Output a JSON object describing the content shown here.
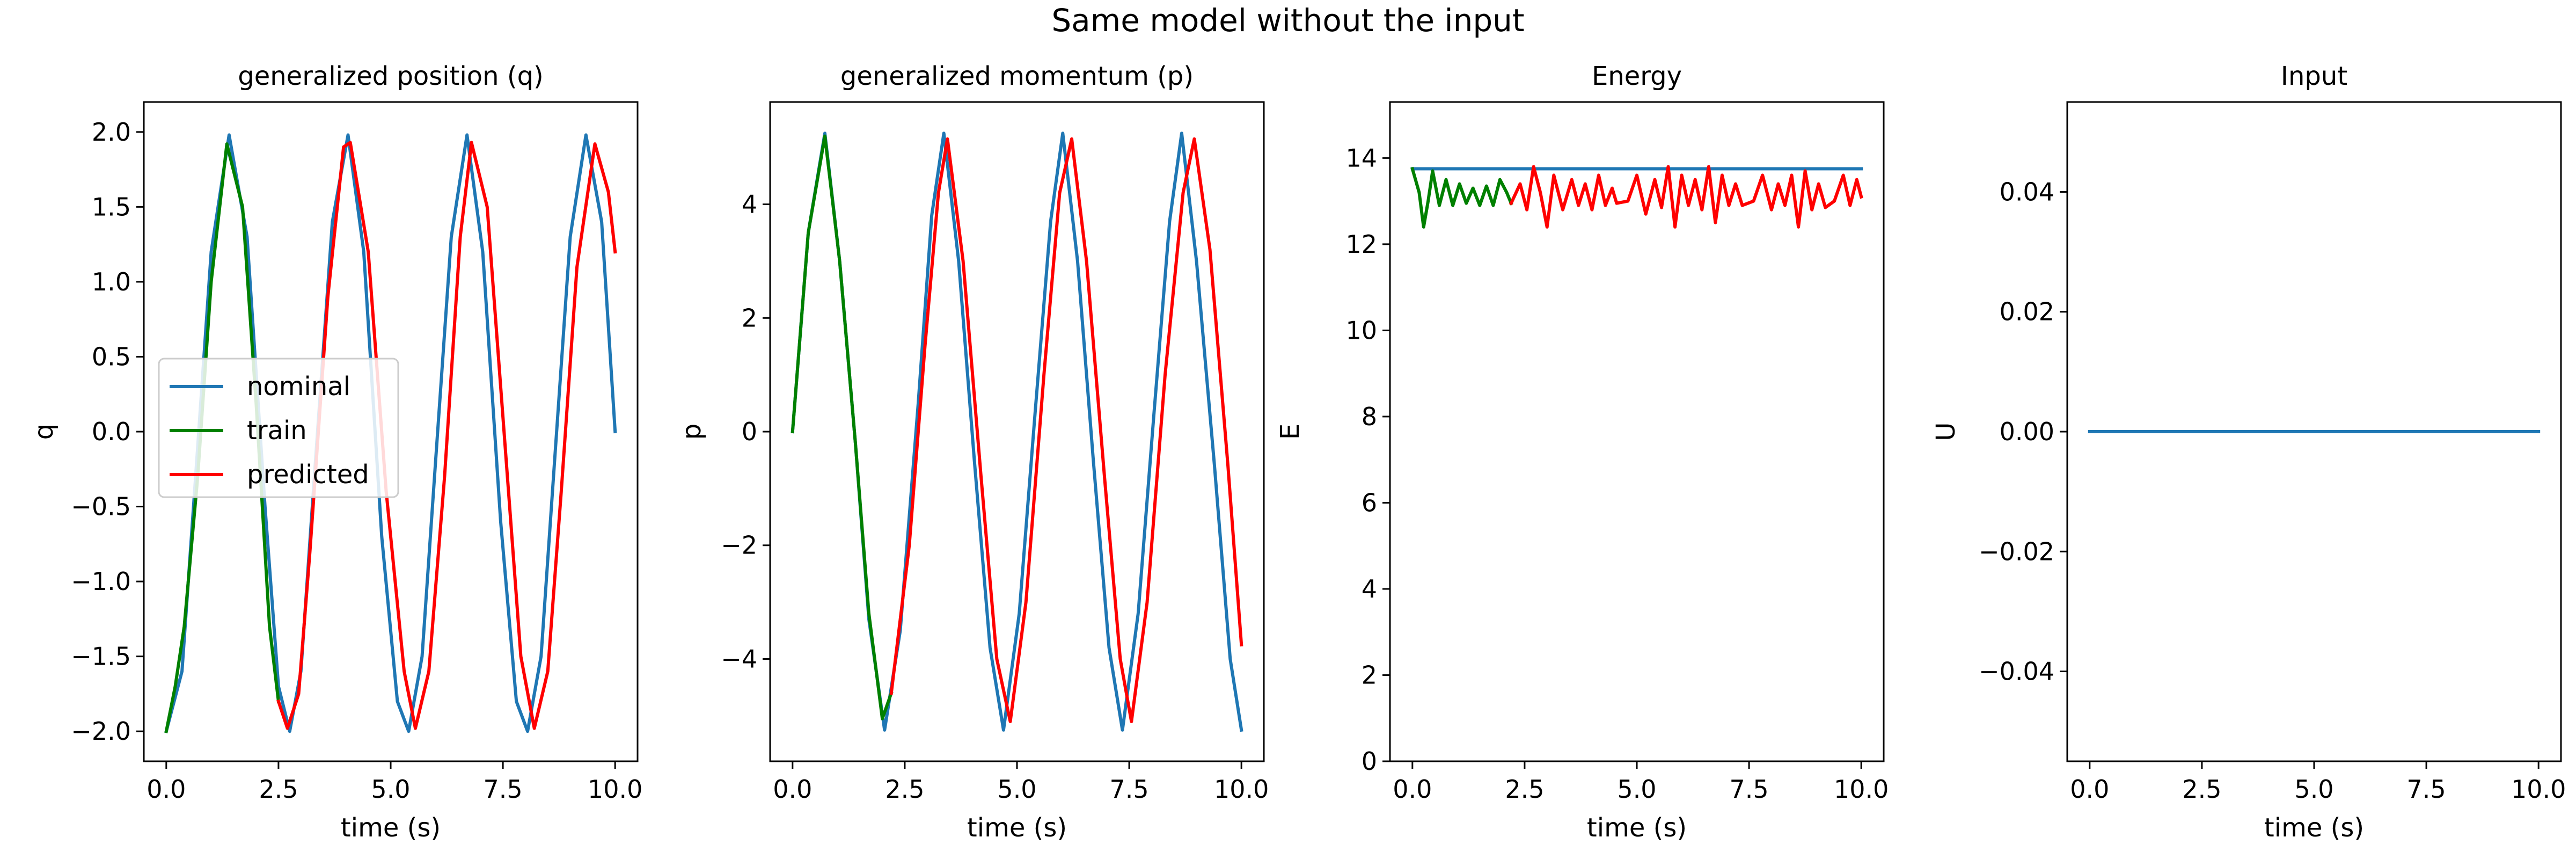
{
  "suptitle": "Same model without the input",
  "colors": {
    "nominal": "#1f77b4",
    "train": "#008000",
    "predicted": "#ff0000",
    "axis": "#000000"
  },
  "legend": {
    "entries": [
      "nominal",
      "train",
      "predicted"
    ],
    "placement": "center-left"
  },
  "chart_data": [
    {
      "type": "line",
      "title": "generalized position (q)",
      "xlabel": "time (s)",
      "ylabel": "q",
      "xlim": [
        -0.5,
        10.5
      ],
      "ylim": [
        -2.2,
        2.2
      ],
      "xticks": [
        0,
        2.5,
        5,
        7.5,
        10
      ],
      "xticklabels": [
        "0.0",
        "2.5",
        "5.0",
        "7.5",
        "10.0"
      ],
      "yticks": [
        -2,
        -1.5,
        -1,
        -0.5,
        0,
        0.5,
        1,
        1.5,
        2
      ],
      "yticklabels": [
        "−2.0",
        "−1.5",
        "−1.0",
        "−0.5",
        "0.0",
        "0.5",
        "1.0",
        "1.5",
        "2.0"
      ],
      "grid": false,
      "legend": true,
      "series": [
        {
          "name": "nominal",
          "color": "#1f77b4",
          "points": [
            [
              0,
              -2.0
            ],
            [
              0.35,
              -1.6
            ],
            [
              0.7,
              -0.1
            ],
            [
              1.0,
              1.2
            ],
            [
              1.4,
              1.98
            ],
            [
              1.8,
              1.3
            ],
            [
              2.2,
              -0.5
            ],
            [
              2.5,
              -1.7
            ],
            [
              2.75,
              -2.0
            ],
            [
              3.0,
              -1.6
            ],
            [
              3.3,
              -0.3
            ],
            [
              3.7,
              1.4
            ],
            [
              4.05,
              1.98
            ],
            [
              4.4,
              1.2
            ],
            [
              4.8,
              -0.7
            ],
            [
              5.15,
              -1.8
            ],
            [
              5.4,
              -2.0
            ],
            [
              5.7,
              -1.5
            ],
            [
              6.0,
              -0.2
            ],
            [
              6.35,
              1.3
            ],
            [
              6.7,
              1.98
            ],
            [
              7.05,
              1.2
            ],
            [
              7.45,
              -0.6
            ],
            [
              7.8,
              -1.8
            ],
            [
              8.05,
              -2.0
            ],
            [
              8.35,
              -1.5
            ],
            [
              8.65,
              -0.2
            ],
            [
              9.0,
              1.3
            ],
            [
              9.35,
              1.98
            ],
            [
              9.7,
              1.4
            ],
            [
              10.0,
              0.0
            ]
          ]
        },
        {
          "name": "train",
          "color": "#008000",
          "points": [
            [
              0,
              -2.0
            ],
            [
              0.2,
              -1.7
            ],
            [
              0.4,
              -1.3
            ],
            [
              0.7,
              -0.3
            ],
            [
              1.0,
              1.0
            ],
            [
              1.35,
              1.92
            ],
            [
              1.7,
              1.5
            ],
            [
              2.0,
              0.2
            ],
            [
              2.3,
              -1.3
            ],
            [
              2.5,
              -1.8
            ]
          ]
        },
        {
          "name": "predicted",
          "color": "#ff0000",
          "points": [
            [
              2.5,
              -1.8
            ],
            [
              2.7,
              -1.98
            ],
            [
              2.95,
              -1.75
            ],
            [
              3.2,
              -0.8
            ],
            [
              3.6,
              0.9
            ],
            [
              3.95,
              1.9
            ],
            [
              4.1,
              1.93
            ],
            [
              4.5,
              1.2
            ],
            [
              4.9,
              -0.4
            ],
            [
              5.3,
              -1.6
            ],
            [
              5.55,
              -1.98
            ],
            [
              5.85,
              -1.6
            ],
            [
              6.2,
              -0.3
            ],
            [
              6.55,
              1.3
            ],
            [
              6.8,
              1.93
            ],
            [
              7.15,
              1.5
            ],
            [
              7.55,
              -0.1
            ],
            [
              7.9,
              -1.5
            ],
            [
              8.2,
              -1.98
            ],
            [
              8.5,
              -1.6
            ],
            [
              8.8,
              -0.4
            ],
            [
              9.15,
              1.1
            ],
            [
              9.55,
              1.92
            ],
            [
              9.85,
              1.6
            ],
            [
              10.0,
              1.2
            ]
          ]
        }
      ]
    },
    {
      "type": "line",
      "title": "generalized momentum (p)",
      "xlabel": "time (s)",
      "ylabel": "p",
      "xlim": [
        -0.5,
        10.5
      ],
      "ylim": [
        -5.8,
        5.8
      ],
      "xticks": [
        0,
        2.5,
        5,
        7.5,
        10
      ],
      "xticklabels": [
        "0.0",
        "2.5",
        "5.0",
        "7.5",
        "10.0"
      ],
      "yticks": [
        -4,
        -2,
        0,
        2,
        4
      ],
      "yticklabels": [
        "−4",
        "−2",
        "0",
        "2",
        "4"
      ],
      "grid": false,
      "legend": false,
      "series": [
        {
          "name": "nominal",
          "color": "#1f77b4",
          "points": [
            [
              0,
              0.0
            ],
            [
              0.35,
              3.5
            ],
            [
              0.72,
              5.25
            ],
            [
              1.05,
              3.0
            ],
            [
              1.4,
              -0.2
            ],
            [
              1.7,
              -3.3
            ],
            [
              2.05,
              -5.25
            ],
            [
              2.4,
              -3.5
            ],
            [
              2.8,
              0.5
            ],
            [
              3.1,
              3.8
            ],
            [
              3.37,
              5.25
            ],
            [
              3.7,
              3.0
            ],
            [
              4.05,
              -0.5
            ],
            [
              4.4,
              -3.8
            ],
            [
              4.7,
              -5.25
            ],
            [
              5.05,
              -3.2
            ],
            [
              5.4,
              0.3
            ],
            [
              5.75,
              3.7
            ],
            [
              6.02,
              5.25
            ],
            [
              6.35,
              3.0
            ],
            [
              6.7,
              -0.5
            ],
            [
              7.05,
              -3.8
            ],
            [
              7.35,
              -5.25
            ],
            [
              7.7,
              -3.2
            ],
            [
              8.05,
              0.3
            ],
            [
              8.4,
              3.7
            ],
            [
              8.67,
              5.25
            ],
            [
              9.0,
              3.0
            ],
            [
              9.4,
              -0.6
            ],
            [
              9.75,
              -4.0
            ],
            [
              10.0,
              -5.25
            ]
          ]
        },
        {
          "name": "train",
          "color": "#008000",
          "points": [
            [
              0,
              0.0
            ],
            [
              0.35,
              3.5
            ],
            [
              0.72,
              5.2
            ],
            [
              1.05,
              3.0
            ],
            [
              1.4,
              -0.2
            ],
            [
              1.7,
              -3.2
            ],
            [
              2.0,
              -5.05
            ],
            [
              2.2,
              -4.6
            ]
          ]
        },
        {
          "name": "predicted",
          "color": "#ff0000",
          "points": [
            [
              2.2,
              -4.6
            ],
            [
              2.6,
              -2.0
            ],
            [
              2.95,
              1.5
            ],
            [
              3.25,
              4.2
            ],
            [
              3.45,
              5.15
            ],
            [
              3.8,
              3.0
            ],
            [
              4.2,
              -0.8
            ],
            [
              4.55,
              -4.0
            ],
            [
              4.85,
              -5.1
            ],
            [
              5.2,
              -3.0
            ],
            [
              5.6,
              1.0
            ],
            [
              5.95,
              4.2
            ],
            [
              6.22,
              5.15
            ],
            [
              6.55,
              3.0
            ],
            [
              6.95,
              -0.8
            ],
            [
              7.3,
              -4.0
            ],
            [
              7.55,
              -5.1
            ],
            [
              7.9,
              -3.0
            ],
            [
              8.3,
              1.0
            ],
            [
              8.7,
              4.2
            ],
            [
              8.95,
              5.15
            ],
            [
              9.3,
              3.2
            ],
            [
              9.7,
              -0.6
            ],
            [
              10.0,
              -3.75
            ]
          ]
        }
      ]
    },
    {
      "type": "line",
      "title": "Energy",
      "xlabel": "time (s)",
      "ylabel": "E",
      "xlim": [
        -0.5,
        10.5
      ],
      "ylim": [
        0,
        15.3
      ],
      "xticks": [
        0,
        2.5,
        5,
        7.5,
        10
      ],
      "xticklabels": [
        "0.0",
        "2.5",
        "5.0",
        "7.5",
        "10.0"
      ],
      "yticks": [
        0,
        2,
        4,
        6,
        8,
        10,
        12,
        14
      ],
      "yticklabels": [
        "0",
        "2",
        "4",
        "6",
        "8",
        "10",
        "12",
        "14"
      ],
      "grid": false,
      "legend": false,
      "series": [
        {
          "name": "nominal",
          "color": "#1f77b4",
          "points": [
            [
              0,
              13.75
            ],
            [
              10.0,
              13.75
            ]
          ]
        },
        {
          "name": "train",
          "color": "#008000",
          "points": [
            [
              0,
              13.75
            ],
            [
              0.15,
              13.2
            ],
            [
              0.25,
              12.4
            ],
            [
              0.35,
              13.0
            ],
            [
              0.45,
              13.7
            ],
            [
              0.6,
              12.9
            ],
            [
              0.75,
              13.5
            ],
            [
              0.9,
              12.9
            ],
            [
              1.05,
              13.4
            ],
            [
              1.2,
              12.95
            ],
            [
              1.35,
              13.3
            ],
            [
              1.5,
              12.9
            ],
            [
              1.65,
              13.35
            ],
            [
              1.8,
              12.9
            ],
            [
              1.95,
              13.5
            ],
            [
              2.1,
              13.2
            ],
            [
              2.2,
              12.95
            ]
          ]
        },
        {
          "name": "predicted",
          "color": "#ff0000",
          "points": [
            [
              2.2,
              12.95
            ],
            [
              2.4,
              13.4
            ],
            [
              2.55,
              12.8
            ],
            [
              2.7,
              13.8
            ],
            [
              2.85,
              13.2
            ],
            [
              3.0,
              12.4
            ],
            [
              3.15,
              13.6
            ],
            [
              3.35,
              12.8
            ],
            [
              3.55,
              13.5
            ],
            [
              3.7,
              12.9
            ],
            [
              3.85,
              13.4
            ],
            [
              4.0,
              12.8
            ],
            [
              4.15,
              13.6
            ],
            [
              4.3,
              12.9
            ],
            [
              4.45,
              13.3
            ],
            [
              4.55,
              12.95
            ],
            [
              4.8,
              13.0
            ],
            [
              5.0,
              13.6
            ],
            [
              5.2,
              12.7
            ],
            [
              5.4,
              13.5
            ],
            [
              5.55,
              12.85
            ],
            [
              5.7,
              13.8
            ],
            [
              5.85,
              12.4
            ],
            [
              6.0,
              13.6
            ],
            [
              6.15,
              12.9
            ],
            [
              6.3,
              13.5
            ],
            [
              6.45,
              12.8
            ],
            [
              6.6,
              13.8
            ],
            [
              6.75,
              12.5
            ],
            [
              6.9,
              13.6
            ],
            [
              7.05,
              12.9
            ],
            [
              7.2,
              13.4
            ],
            [
              7.35,
              12.9
            ],
            [
              7.6,
              13.0
            ],
            [
              7.8,
              13.6
            ],
            [
              8.0,
              12.8
            ],
            [
              8.15,
              13.4
            ],
            [
              8.3,
              12.9
            ],
            [
              8.45,
              13.6
            ],
            [
              8.6,
              12.4
            ],
            [
              8.75,
              13.7
            ],
            [
              8.9,
              12.8
            ],
            [
              9.05,
              13.4
            ],
            [
              9.2,
              12.85
            ],
            [
              9.4,
              13.0
            ],
            [
              9.6,
              13.6
            ],
            [
              9.75,
              12.9
            ],
            [
              9.9,
              13.5
            ],
            [
              10.0,
              13.1
            ]
          ]
        }
      ]
    },
    {
      "type": "line",
      "title": "Input",
      "xlabel": "time (s)",
      "ylabel": "U",
      "xlim": [
        -0.5,
        10.5
      ],
      "ylim": [
        -0.055,
        0.055
      ],
      "xticks": [
        0,
        2.5,
        5,
        7.5,
        10
      ],
      "xticklabels": [
        "0.0",
        "2.5",
        "5.0",
        "7.5",
        "10.0"
      ],
      "yticks": [
        -0.04,
        -0.02,
        0,
        0.02,
        0.04
      ],
      "yticklabels": [
        "−0.04",
        "−0.02",
        "0.00",
        "0.02",
        "0.04"
      ],
      "grid": false,
      "legend": false,
      "series": [
        {
          "name": "",
          "color": "#1f77b4",
          "points": [
            [
              0,
              0
            ],
            [
              10.0,
              0
            ]
          ]
        }
      ]
    }
  ]
}
